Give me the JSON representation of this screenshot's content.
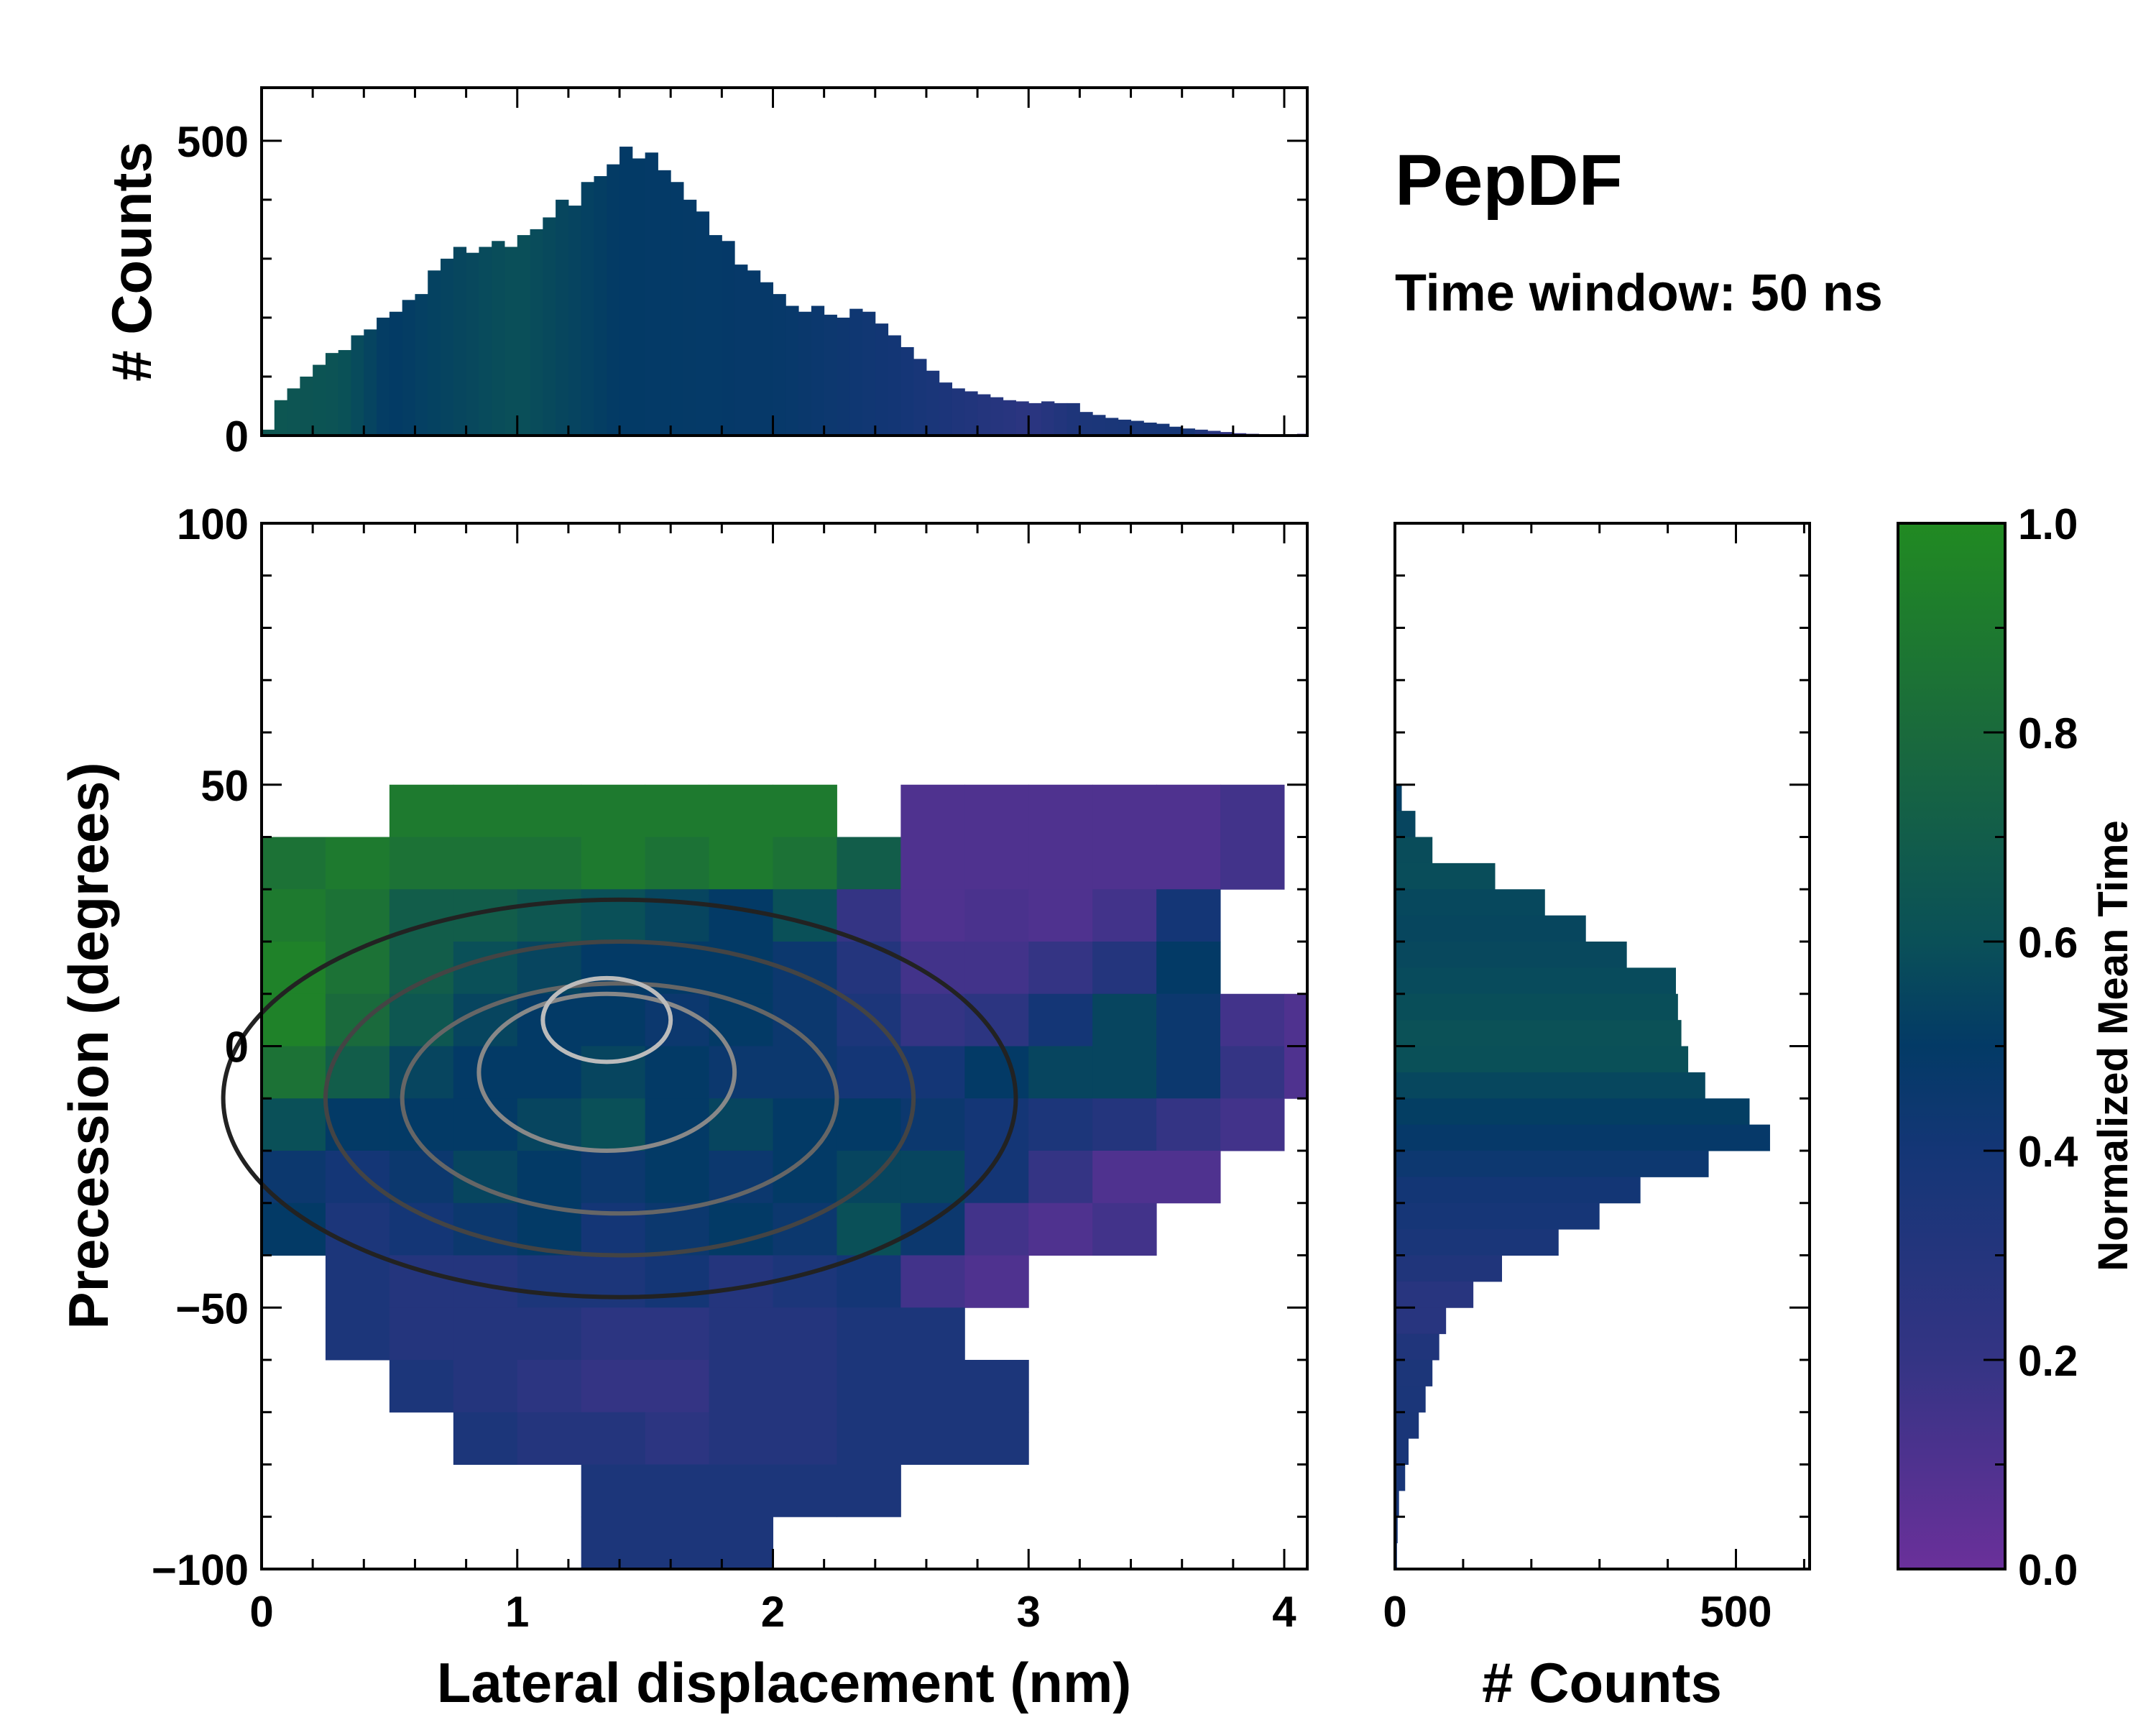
{
  "chart_data": [
    {
      "id": "top-histogram",
      "type": "bar",
      "ylabel": "# Counts",
      "xlim": [
        0,
        4.09
      ],
      "ylim": [
        0,
        590
      ],
      "yticks": [
        0,
        500
      ],
      "bin_width": 0.05,
      "x": [
        0.0,
        0.05,
        0.1,
        0.15,
        0.2,
        0.25,
        0.3,
        0.35,
        0.4,
        0.45,
        0.5,
        0.55,
        0.6,
        0.65,
        0.7,
        0.75,
        0.8,
        0.85,
        0.9,
        0.95,
        1.0,
        1.05,
        1.1,
        1.15,
        1.2,
        1.25,
        1.3,
        1.35,
        1.4,
        1.45,
        1.5,
        1.55,
        1.6,
        1.65,
        1.7,
        1.75,
        1.8,
        1.85,
        1.9,
        1.95,
        2.0,
        2.05,
        2.1,
        2.15,
        2.2,
        2.25,
        2.3,
        2.35,
        2.4,
        2.45,
        2.5,
        2.55,
        2.6,
        2.65,
        2.7,
        2.75,
        2.8,
        2.85,
        2.9,
        2.95,
        3.0,
        3.05,
        3.1,
        3.15,
        3.2,
        3.25,
        3.3,
        3.35,
        3.4,
        3.45,
        3.5,
        3.55,
        3.6,
        3.65,
        3.7,
        3.75,
        3.8,
        3.85,
        3.9,
        3.95,
        4.0,
        4.05
      ],
      "values": [
        10,
        60,
        80,
        100,
        120,
        140,
        145,
        170,
        180,
        200,
        210,
        230,
        240,
        280,
        300,
        320,
        310,
        320,
        330,
        320,
        340,
        350,
        370,
        400,
        390,
        430,
        440,
        460,
        490,
        470,
        480,
        450,
        430,
        400,
        380,
        340,
        330,
        290,
        280,
        260,
        240,
        220,
        210,
        220,
        205,
        200,
        215,
        210,
        190,
        170,
        150,
        130,
        110,
        90,
        80,
        75,
        70,
        65,
        60,
        58,
        55,
        58,
        55,
        55,
        40,
        35,
        30,
        27,
        25,
        22,
        20,
        15,
        12,
        10,
        8,
        6,
        4,
        3,
        2,
        1,
        1,
        3
      ],
      "mean_time_profile": [
        [
          0,
          0.65
        ],
        [
          0.3,
          0.62
        ],
        [
          0.5,
          0.5
        ],
        [
          1.0,
          0.6
        ],
        [
          1.4,
          0.5
        ],
        [
          2.0,
          0.48
        ],
        [
          2.5,
          0.4
        ],
        [
          3.0,
          0.25
        ],
        [
          3.2,
          0.35
        ],
        [
          3.6,
          0.4
        ],
        [
          3.8,
          0.2
        ],
        [
          4.1,
          0.12
        ]
      ]
    },
    {
      "id": "main-heatmap",
      "type": "heatmap",
      "xlabel": "Lateral displacement (nm)",
      "ylabel": "Precession (degrees)",
      "xlim": [
        0,
        4.09
      ],
      "ylim": [
        -100,
        100
      ],
      "xticks": [
        0,
        1,
        2,
        3,
        4
      ],
      "yticks": [
        -100,
        -50,
        0,
        50,
        100
      ],
      "ytick_labels": [
        "−100",
        "−50",
        "0",
        "50",
        "100"
      ],
      "x_bin_edges_start": 0,
      "x_bin_width": 0.25,
      "y_bin_top": 50,
      "y_bin_height": 10,
      "value_label": "Normalized Mean Time",
      "grid": [
        [
          null,
          null,
          0.9,
          0.9,
          0.9,
          0.9,
          0.9,
          0.9,
          0.9,
          null,
          0.1,
          0.1,
          0.1,
          0.1,
          0.1,
          0.15,
          null
        ],
        [
          0.85,
          0.9,
          0.85,
          0.85,
          0.85,
          0.9,
          0.85,
          0.9,
          0.85,
          0.7,
          0.1,
          0.1,
          0.1,
          0.1,
          0.1,
          0.15,
          null
        ],
        [
          0.9,
          0.85,
          0.7,
          0.7,
          0.65,
          0.6,
          0.55,
          0.5,
          0.6,
          0.2,
          0.1,
          0.12,
          0.1,
          0.15,
          0.4,
          null,
          null
        ],
        [
          0.95,
          0.85,
          0.7,
          0.6,
          0.55,
          0.5,
          0.5,
          0.5,
          0.45,
          0.3,
          0.15,
          0.15,
          0.2,
          0.3,
          0.5,
          null,
          null
        ],
        [
          0.95,
          0.8,
          0.65,
          0.55,
          0.5,
          0.5,
          0.45,
          0.5,
          0.45,
          0.35,
          0.2,
          0.25,
          0.4,
          0.55,
          0.45,
          0.15,
          0.1
        ],
        [
          0.85,
          0.7,
          0.55,
          0.5,
          0.5,
          0.55,
          0.5,
          0.45,
          0.45,
          0.4,
          0.4,
          0.5,
          0.55,
          0.55,
          0.45,
          0.2,
          0.1
        ],
        [
          0.6,
          0.5,
          0.5,
          0.5,
          0.55,
          0.6,
          0.5,
          0.55,
          0.5,
          0.5,
          0.45,
          0.4,
          0.35,
          0.3,
          0.2,
          0.15,
          null
        ],
        [
          0.45,
          0.4,
          0.45,
          0.55,
          0.5,
          0.45,
          0.5,
          0.45,
          0.5,
          0.55,
          0.55,
          0.4,
          0.2,
          0.1,
          0.1,
          null,
          null
        ],
        [
          0.5,
          0.35,
          0.4,
          0.45,
          0.5,
          0.4,
          0.45,
          0.5,
          0.45,
          0.6,
          0.45,
          0.15,
          0.1,
          0.15,
          null,
          null,
          null
        ],
        [
          null,
          0.35,
          0.3,
          0.3,
          0.35,
          0.35,
          0.4,
          0.3,
          0.35,
          0.4,
          0.15,
          0.1,
          null,
          null,
          null,
          null,
          null
        ],
        [
          null,
          0.35,
          0.3,
          0.3,
          0.3,
          0.25,
          0.25,
          0.3,
          0.3,
          0.35,
          0.35,
          null,
          null,
          null,
          null,
          null,
          null
        ],
        [
          null,
          null,
          0.35,
          0.3,
          0.25,
          0.2,
          0.2,
          0.3,
          0.3,
          0.35,
          0.35,
          0.35,
          null,
          null,
          null,
          null,
          null
        ],
        [
          null,
          null,
          null,
          0.35,
          0.3,
          0.3,
          0.25,
          0.3,
          0.3,
          0.35,
          0.35,
          0.35,
          null,
          null,
          null,
          null,
          null
        ],
        [
          null,
          null,
          null,
          null,
          null,
          0.35,
          0.35,
          0.35,
          0.35,
          0.35,
          null,
          null,
          null,
          null,
          null,
          null,
          null
        ],
        [
          null,
          null,
          null,
          null,
          null,
          0.35,
          0.35,
          0.35,
          null,
          null,
          null,
          null,
          null,
          null,
          null,
          null,
          null
        ]
      ],
      "density_contours": [
        {
          "cx": 1.4,
          "cy": -10,
          "rx": 1.55,
          "ry": 38,
          "color": "#222222"
        },
        {
          "cx": 1.4,
          "cy": -10,
          "rx": 1.15,
          "ry": 30,
          "color": "#444444"
        },
        {
          "cx": 1.4,
          "cy": -10,
          "rx": 0.85,
          "ry": 22,
          "color": "#666666"
        },
        {
          "cx": 1.35,
          "cy": -5,
          "rx": 0.5,
          "ry": 15,
          "color": "#888888"
        },
        {
          "cx": 1.35,
          "cy": 5,
          "rx": 0.25,
          "ry": 8,
          "color": "#bbbbbb"
        }
      ]
    },
    {
      "id": "right-histogram",
      "type": "bar",
      "orientation": "horizontal",
      "xlabel": "# Counts",
      "xlim": [
        0,
        608
      ],
      "xticks": [
        0,
        500
      ],
      "bin_height": 5,
      "y": [
        47.5,
        42.5,
        37.5,
        32.5,
        27.5,
        22.5,
        17.5,
        12.5,
        7.5,
        2.5,
        -2.5,
        -7.5,
        -12.5,
        -17.5,
        -22.5,
        -27.5,
        -32.5,
        -37.5,
        -42.5,
        -47.5,
        -52.5,
        -57.5,
        -62.5,
        -67.5,
        -72.5,
        -77.5,
        -82.5,
        -87.5,
        -92.5,
        -97.5
      ],
      "values": [
        10,
        30,
        55,
        147,
        220,
        280,
        340,
        412,
        415,
        420,
        430,
        455,
        520,
        550,
        460,
        360,
        300,
        240,
        157,
        115,
        75,
        65,
        55,
        45,
        35,
        20,
        15,
        6,
        4,
        3
      ],
      "mean_time_profile": [
        [
          50,
          0.5
        ],
        [
          35,
          0.6
        ],
        [
          25,
          0.55
        ],
        [
          10,
          0.58
        ],
        [
          0,
          0.62
        ],
        [
          -15,
          0.5
        ],
        [
          -25,
          0.42
        ],
        [
          -40,
          0.35
        ],
        [
          -50,
          0.25
        ],
        [
          -60,
          0.35
        ],
        [
          -100,
          0.4
        ]
      ]
    },
    {
      "id": "colorbar",
      "type": "colorbar",
      "label": "Normalized Mean Time",
      "range": [
        0,
        1
      ],
      "ticks": [
        0.0,
        0.2,
        0.4,
        0.6,
        0.8,
        1.0
      ],
      "tick_labels": [
        "0.0",
        "0.2",
        "0.4",
        "0.6",
        "0.8",
        "1.0"
      ],
      "colormap": [
        [
          0,
          "#6a309a"
        ],
        [
          0.2,
          "#343484"
        ],
        [
          0.4,
          "#143676"
        ],
        [
          0.5,
          "#033a66"
        ],
        [
          0.6,
          "#0a5058"
        ],
        [
          0.8,
          "#1a6a3c"
        ],
        [
          1.0,
          "#218a22"
        ]
      ]
    }
  ],
  "annotations": {
    "title": "PepDF",
    "subtitle": "Time window: 50 ns"
  }
}
